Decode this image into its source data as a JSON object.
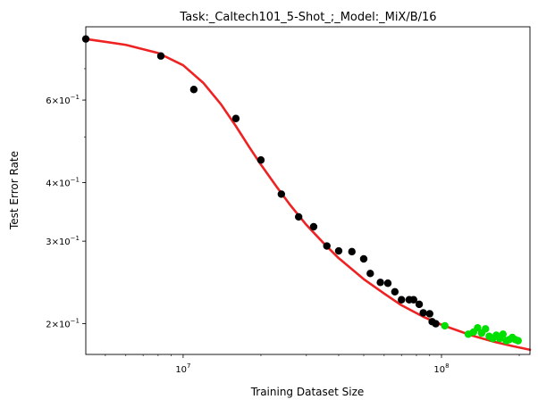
{
  "chart_data": {
    "type": "scatter",
    "title": "Task:_Caltech101_5-Shot_;_Model:_MiX/B/16",
    "xlabel": "Training Dataset Size",
    "ylabel": "Test Error Rate",
    "xscale": "log",
    "yscale": "log",
    "xlim": [
      4200000,
      220000000
    ],
    "ylim": [
      0.172,
      0.86
    ],
    "grid": false,
    "x_ticks": [
      {
        "value": 10000000,
        "base": "10",
        "exp": "7"
      },
      {
        "value": 100000000,
        "base": "10",
        "exp": "8"
      }
    ],
    "y_ticks": [
      {
        "value": 0.2,
        "mant": "2",
        "exp": "−1"
      },
      {
        "value": 0.3,
        "mant": "3",
        "exp": "−1"
      },
      {
        "value": 0.4,
        "mant": "4",
        "exp": "−1"
      },
      {
        "value": 0.6,
        "mant": "6",
        "exp": "−1"
      }
    ],
    "colors": {
      "observed": "#000000",
      "extrapolated": "#00e000",
      "fit": "#ee2222"
    },
    "series": [
      {
        "role": "observed",
        "points": [
          [
            4200000,
            0.81
          ],
          [
            8200000,
            0.745
          ],
          [
            11000000,
            0.632
          ],
          [
            16000000,
            0.548
          ],
          [
            20000000,
            0.447
          ],
          [
            24000000,
            0.378
          ],
          [
            28000000,
            0.338
          ],
          [
            32000000,
            0.322
          ],
          [
            36000000,
            0.293
          ],
          [
            40000000,
            0.286
          ],
          [
            45000000,
            0.285
          ],
          [
            50000000,
            0.275
          ],
          [
            53000000,
            0.256
          ],
          [
            58000000,
            0.245
          ],
          [
            62000000,
            0.244
          ],
          [
            66000000,
            0.234
          ],
          [
            70000000,
            0.225
          ],
          [
            75000000,
            0.225
          ],
          [
            78000000,
            0.225
          ],
          [
            82000000,
            0.22
          ],
          [
            85000000,
            0.211
          ],
          [
            90000000,
            0.21
          ],
          [
            92000000,
            0.202
          ],
          [
            95000000,
            0.2
          ]
        ]
      },
      {
        "role": "extrapolated",
        "points": [
          [
            103000000,
            0.198
          ],
          [
            127000000,
            0.19
          ],
          [
            133000000,
            0.192
          ],
          [
            138000000,
            0.196
          ],
          [
            143000000,
            0.191
          ],
          [
            148000000,
            0.195
          ],
          [
            153000000,
            0.188
          ],
          [
            158000000,
            0.186
          ],
          [
            163000000,
            0.189
          ],
          [
            168000000,
            0.186
          ],
          [
            173000000,
            0.19
          ],
          [
            178000000,
            0.184
          ],
          [
            183000000,
            0.185
          ],
          [
            188000000,
            0.187
          ],
          [
            193000000,
            0.185
          ],
          [
            198000000,
            0.184
          ]
        ]
      },
      {
        "role": "fit",
        "points": [
          [
            4200000,
            0.81
          ],
          [
            6000000,
            0.787
          ],
          [
            8000000,
            0.756
          ],
          [
            10000000,
            0.712
          ],
          [
            12000000,
            0.652
          ],
          [
            14000000,
            0.588
          ],
          [
            16000000,
            0.528
          ],
          [
            18000000,
            0.477
          ],
          [
            20000000,
            0.437
          ],
          [
            23000000,
            0.392
          ],
          [
            26000000,
            0.358
          ],
          [
            30000000,
            0.325
          ],
          [
            35000000,
            0.297
          ],
          [
            40000000,
            0.276
          ],
          [
            50000000,
            0.249
          ],
          [
            60000000,
            0.232
          ],
          [
            70000000,
            0.219
          ],
          [
            85000000,
            0.207
          ],
          [
            100000000,
            0.199
          ],
          [
            130000000,
            0.189
          ],
          [
            160000000,
            0.183
          ],
          [
            190000000,
            0.179
          ],
          [
            220000000,
            0.176
          ]
        ]
      }
    ]
  }
}
